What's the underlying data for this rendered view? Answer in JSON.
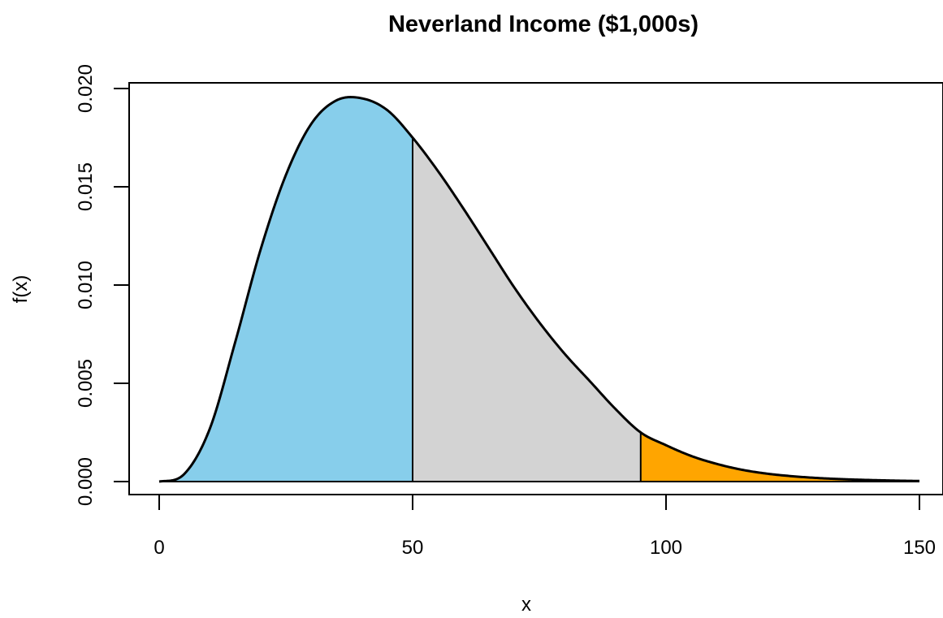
{
  "chart_data": {
    "type": "area",
    "title": "Neverland Income ($1,000s)",
    "xlabel": "x",
    "ylabel": "f(x)",
    "xlim": [
      0,
      150
    ],
    "ylim": [
      0,
      0.02
    ],
    "x_ticks": [
      0,
      50,
      100,
      150
    ],
    "x_tick_labels": [
      "0",
      "50",
      "100",
      "150"
    ],
    "y_ticks": [
      0,
      0.005,
      0.01,
      0.015,
      0.02
    ],
    "y_tick_labels": [
      "0.000",
      "0.005",
      "0.010",
      "0.015",
      "0.020"
    ],
    "grid": false,
    "legend": "none",
    "curve": {
      "x": [
        0,
        5,
        10,
        15,
        20,
        25,
        30,
        35,
        40,
        45,
        50,
        55,
        60,
        65,
        70,
        75,
        80,
        85,
        90,
        95,
        100,
        105,
        110,
        115,
        120,
        125,
        130,
        135,
        140,
        145,
        150
      ],
      "y": [
        0,
        0.0004,
        0.0027,
        0.0071,
        0.0118,
        0.0156,
        0.0182,
        0.0194,
        0.0195,
        0.0189,
        0.0175,
        0.0158,
        0.0139,
        0.0119,
        0.0099,
        0.0081,
        0.0065,
        0.0051,
        0.0037,
        0.0025,
        0.00185,
        0.0013,
        0.0009,
        0.0006,
        0.0004,
        0.00027,
        0.00018,
        0.00012,
        8e-05,
        5e-05,
        3e-05
      ],
      "color": "#000000"
    },
    "regions": [
      {
        "from": 0,
        "to": 50,
        "color": "#87CEEB"
      },
      {
        "from": 50,
        "to": 95,
        "color": "#D3D3D3"
      },
      {
        "from": 95,
        "to": 150,
        "color": "#FFA500"
      }
    ]
  }
}
